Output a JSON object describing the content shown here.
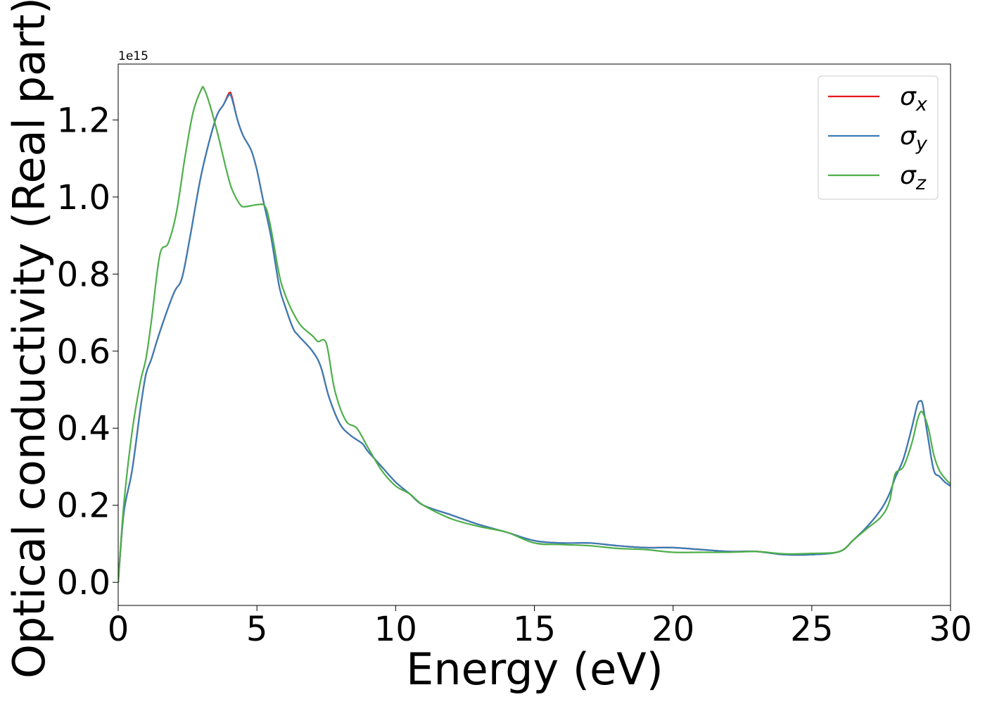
{
  "chart_data": {
    "type": "line",
    "title": "",
    "xlabel": "Energy (eV)",
    "ylabel": "Optical conductivity (Real part)",
    "y_offset_label": "1e15",
    "y_scale": 1000000000000000.0,
    "xlim": [
      0,
      30
    ],
    "ylim": [
      -0.06,
      1.345
    ],
    "x_ticks": [
      0,
      5,
      10,
      15,
      20,
      25,
      30
    ],
    "x_tick_labels": [
      "0",
      "5",
      "10",
      "15",
      "20",
      "25",
      "30"
    ],
    "y_ticks": [
      0.0,
      0.2,
      0.4,
      0.6,
      0.8,
      1.0,
      1.2
    ],
    "y_tick_labels": [
      "0.0",
      "0.2",
      "0.4",
      "0.6",
      "0.8",
      "1.0",
      "1.2"
    ],
    "grid": false,
    "legend_position": "top-right",
    "series": [
      {
        "name": "σ",
        "subscript": "x",
        "color": "#e41a1c",
        "x": [
          0.0,
          0.2,
          0.5,
          0.8,
          1.0,
          1.2,
          1.5,
          2.0,
          2.3,
          2.6,
          3.0,
          3.5,
          3.8,
          4.0,
          4.1,
          4.3,
          4.5,
          4.8,
          5.0,
          5.2,
          5.5,
          5.8,
          6.0,
          6.3,
          6.5,
          7.0,
          7.3,
          7.6,
          8.0,
          8.4,
          8.8,
          9.0,
          9.5,
          10.0,
          10.5,
          11.0,
          12.0,
          13.0,
          14.0,
          15.0,
          16.0,
          17.0,
          18.0,
          19.0,
          20.0,
          21.0,
          22.0,
          23.0,
          24.0,
          25.0,
          26.0,
          26.5,
          27.0,
          27.5,
          27.8,
          28.0,
          28.3,
          28.6,
          28.8,
          28.9,
          29.0,
          29.2,
          29.4,
          29.6,
          29.8,
          30.0
        ],
        "y": [
          0.0,
          0.18,
          0.29,
          0.45,
          0.54,
          0.58,
          0.65,
          0.75,
          0.79,
          0.9,
          1.06,
          1.2,
          1.24,
          1.27,
          1.26,
          1.2,
          1.16,
          1.12,
          1.07,
          1.0,
          0.9,
          0.77,
          0.72,
          0.66,
          0.64,
          0.6,
          0.56,
          0.48,
          0.41,
          0.38,
          0.36,
          0.34,
          0.3,
          0.26,
          0.23,
          0.2,
          0.175,
          0.15,
          0.13,
          0.108,
          0.102,
          0.102,
          0.095,
          0.09,
          0.09,
          0.085,
          0.08,
          0.08,
          0.072,
          0.072,
          0.08,
          0.11,
          0.145,
          0.19,
          0.23,
          0.27,
          0.32,
          0.4,
          0.46,
          0.47,
          0.46,
          0.37,
          0.29,
          0.275,
          0.26,
          0.25
        ]
      },
      {
        "name": "σ",
        "subscript": "y",
        "color": "#377eb8",
        "x": [
          0.0,
          0.2,
          0.5,
          0.8,
          1.0,
          1.2,
          1.5,
          2.0,
          2.3,
          2.6,
          3.0,
          3.5,
          3.8,
          4.0,
          4.1,
          4.3,
          4.5,
          4.8,
          5.0,
          5.2,
          5.5,
          5.8,
          6.0,
          6.3,
          6.5,
          7.0,
          7.3,
          7.6,
          8.0,
          8.4,
          8.8,
          9.0,
          9.5,
          10.0,
          10.5,
          11.0,
          12.0,
          13.0,
          14.0,
          15.0,
          16.0,
          17.0,
          18.0,
          19.0,
          20.0,
          21.0,
          22.0,
          23.0,
          24.0,
          25.0,
          26.0,
          26.5,
          27.0,
          27.5,
          27.8,
          28.0,
          28.3,
          28.6,
          28.8,
          28.9,
          29.0,
          29.2,
          29.4,
          29.6,
          29.8,
          30.0
        ],
        "y": [
          0.0,
          0.18,
          0.29,
          0.45,
          0.54,
          0.58,
          0.65,
          0.75,
          0.79,
          0.9,
          1.06,
          1.2,
          1.24,
          1.265,
          1.255,
          1.2,
          1.16,
          1.12,
          1.07,
          1.0,
          0.9,
          0.77,
          0.72,
          0.66,
          0.64,
          0.6,
          0.56,
          0.48,
          0.41,
          0.38,
          0.36,
          0.34,
          0.3,
          0.26,
          0.23,
          0.2,
          0.175,
          0.15,
          0.13,
          0.108,
          0.102,
          0.102,
          0.095,
          0.09,
          0.09,
          0.085,
          0.08,
          0.08,
          0.072,
          0.072,
          0.08,
          0.11,
          0.145,
          0.19,
          0.23,
          0.27,
          0.32,
          0.4,
          0.46,
          0.47,
          0.46,
          0.37,
          0.29,
          0.275,
          0.26,
          0.25
        ]
      },
      {
        "name": "σ",
        "subscript": "z",
        "color": "#4daf4a",
        "x": [
          0.0,
          0.2,
          0.5,
          0.8,
          1.0,
          1.2,
          1.5,
          1.8,
          2.1,
          2.4,
          2.7,
          3.0,
          3.1,
          3.3,
          3.6,
          3.9,
          4.1,
          4.4,
          4.6,
          5.0,
          5.3,
          5.5,
          5.8,
          6.0,
          6.3,
          6.6,
          7.0,
          7.2,
          7.5,
          7.8,
          8.2,
          8.6,
          9.0,
          9.5,
          10.0,
          10.5,
          11.0,
          12.0,
          13.0,
          14.0,
          15.0,
          16.0,
          17.0,
          18.0,
          19.0,
          20.0,
          21.0,
          22.0,
          23.0,
          24.0,
          25.0,
          26.0,
          26.5,
          27.0,
          27.5,
          27.8,
          28.0,
          28.3,
          28.6,
          28.8,
          28.9,
          29.0,
          29.2,
          29.4,
          29.6,
          29.8,
          30.0
        ],
        "y": [
          0.0,
          0.2,
          0.39,
          0.52,
          0.58,
          0.68,
          0.85,
          0.88,
          0.96,
          1.1,
          1.22,
          1.28,
          1.28,
          1.24,
          1.16,
          1.07,
          1.02,
          0.98,
          0.975,
          0.98,
          0.975,
          0.92,
          0.8,
          0.75,
          0.7,
          0.665,
          0.64,
          0.625,
          0.62,
          0.5,
          0.42,
          0.4,
          0.35,
          0.29,
          0.25,
          0.23,
          0.2,
          0.165,
          0.145,
          0.13,
          0.102,
          0.098,
          0.095,
          0.088,
          0.085,
          0.078,
          0.078,
          0.078,
          0.08,
          0.074,
          0.075,
          0.08,
          0.11,
          0.14,
          0.17,
          0.21,
          0.28,
          0.3,
          0.36,
          0.42,
          0.44,
          0.44,
          0.4,
          0.33,
          0.29,
          0.27,
          0.255
        ]
      }
    ]
  }
}
